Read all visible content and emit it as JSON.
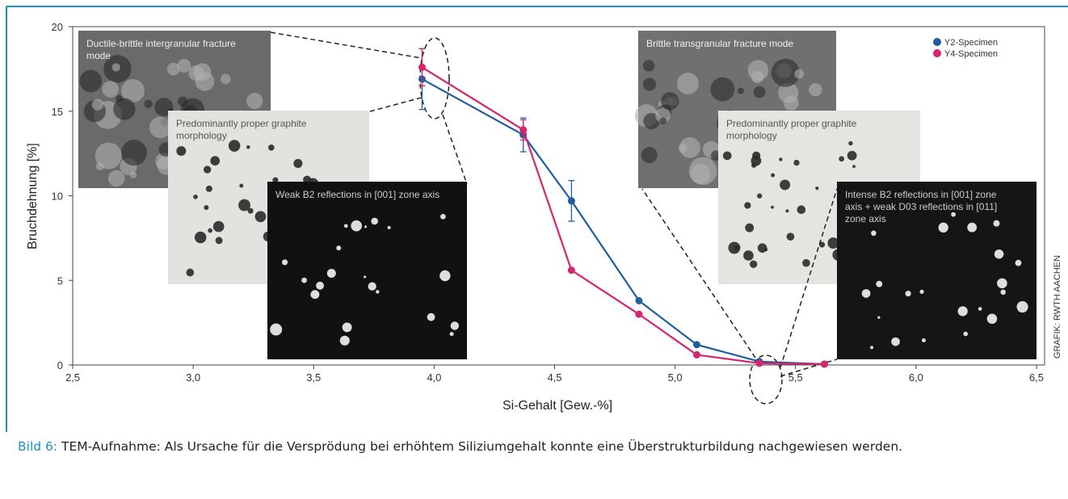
{
  "chart_data": {
    "type": "line",
    "xlabel": "Si-Gehalt [Gew.-%]",
    "ylabel": "Bruchdehnung [%]",
    "xlim": [
      2.5,
      6.5
    ],
    "xticks": [
      {
        "value": 2.5,
        "label": "2,5"
      },
      {
        "value": 3.0,
        "label": "3,0"
      },
      {
        "value": 3.5,
        "label": "3,5"
      },
      {
        "value": 4.0,
        "label": "4,0"
      },
      {
        "value": 4.5,
        "label": "4,5"
      },
      {
        "value": 5.0,
        "label": "5,0"
      },
      {
        "value": 5.5,
        "label": "5,5"
      },
      {
        "value": 6.0,
        "label": "6,0"
      },
      {
        "value": 6.5,
        "label": "6,5"
      }
    ],
    "ylim": [
      0,
      20
    ],
    "yticks": [
      0,
      5,
      10,
      15,
      20
    ],
    "legend": "top-right",
    "series": [
      {
        "name": "Y2-Specimen",
        "color": "#1f5fa0",
        "x": [
          3.95,
          4.37,
          4.57,
          4.85,
          5.09,
          5.35,
          5.62
        ],
        "values": [
          16.9,
          13.6,
          9.7,
          3.8,
          1.2,
          0.2,
          0.05
        ],
        "errors": [
          1.8,
          1.0,
          1.2,
          null,
          null,
          null,
          null
        ]
      },
      {
        "name": "Y4-Specimen",
        "color": "#d6246e",
        "x": [
          3.95,
          4.37,
          4.57,
          4.85,
          5.09,
          5.35,
          5.62
        ],
        "values": [
          17.6,
          13.9,
          5.6,
          3.0,
          0.6,
          0.1,
          0.05
        ],
        "errors": [
          1.1,
          0.6,
          null,
          null,
          null,
          null,
          null
        ]
      }
    ],
    "insets": [
      "Ductile-brittle intergranular fracture mode",
      "Predominantly proper graphite morphology",
      "Weak B2 reflections in [001] zone axis",
      "Brittle transgranular fracture mode",
      "Predominantly proper graphite morphology",
      "Intense B2 reflections in [001] zone axis + weak D03 reflections in [011] zone axis"
    ],
    "source": "GRAFIK: RWTH AACHEN"
  },
  "caption": {
    "lead": "Bild 6:",
    "text": "TEM-Aufnahme: Als Ursache für die Versprödung bei erhöhtem Siliziumgehalt konnte eine Überstrukturbildung nachgewiesen werden."
  }
}
